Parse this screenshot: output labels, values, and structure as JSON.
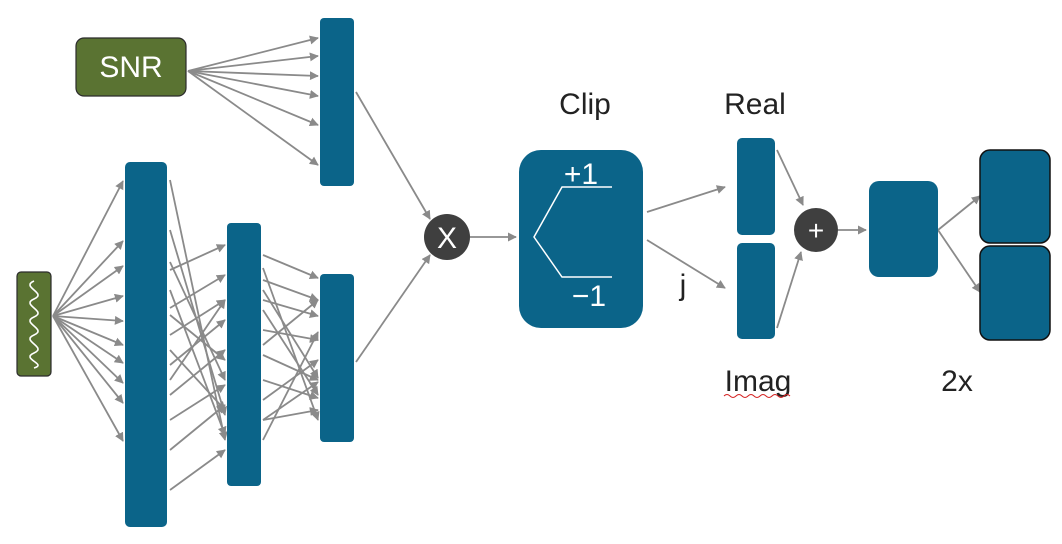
{
  "input_snr": {
    "label": "SNR"
  },
  "labels": {
    "clip": "Clip",
    "clip_upper": "+1",
    "clip_lower": "−1",
    "real": "Real",
    "imag": "Imag",
    "j": "j",
    "multiply_symbol": "X",
    "add_symbol": "+",
    "duplicate": "2x"
  },
  "colors": {
    "block": "#0b6489",
    "input_green": "#5a7332",
    "operator": "#3f3f3f",
    "arrow": "#8a8a8a",
    "text": "#222222",
    "spellcheck_underline": "#d42020"
  },
  "icons": {
    "signal_input": "sine-wave-icon",
    "multiply": "multiply-operator-icon",
    "add": "add-operator-icon"
  }
}
